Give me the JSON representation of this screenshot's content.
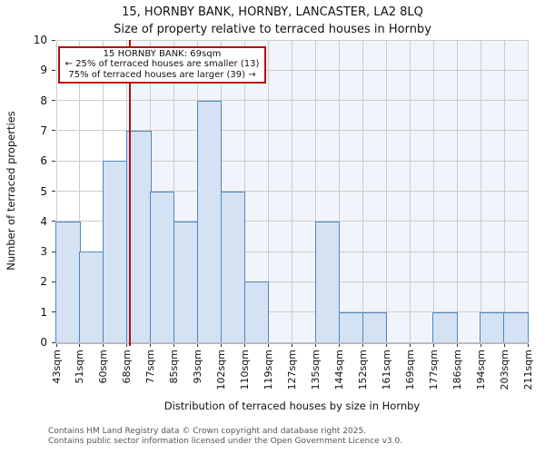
{
  "header": {
    "title": "15, HORNBY BANK, HORNBY, LANCASTER, LA2 8LQ",
    "subtitle": "Size of property relative to terraced houses in Hornby"
  },
  "annotation": {
    "lines": [
      "15 HORNBY BANK: 69sqm",
      "← 25% of terraced houses are smaller (13)",
      "75% of terraced houses are larger (39) →"
    ]
  },
  "chart_data": {
    "type": "bar",
    "title": "15, HORNBY BANK, HORNBY, LANCASTER, LA2 8LQ",
    "subtitle": "Size of property relative to terraced houses in Hornby",
    "xlabel": "Distribution of terraced houses by size in Hornby",
    "ylabel": "Number of terraced properties",
    "x_tick_labels": [
      "43sqm",
      "51sqm",
      "60sqm",
      "68sqm",
      "77sqm",
      "85sqm",
      "93sqm",
      "102sqm",
      "110sqm",
      "119sqm",
      "127sqm",
      "135sqm",
      "144sqm",
      "152sqm",
      "161sqm",
      "169sqm",
      "177sqm",
      "186sqm",
      "194sqm",
      "203sqm",
      "211sqm"
    ],
    "x_tick_values": [
      43,
      51,
      60,
      68,
      77,
      85,
      93,
      102,
      110,
      119,
      127,
      135,
      144,
      152,
      161,
      169,
      177,
      186,
      194,
      203,
      211
    ],
    "bin_counts": [
      4,
      3,
      6,
      7,
      5,
      4,
      8,
      5,
      2,
      0,
      0,
      4,
      1,
      1,
      0,
      0,
      1,
      0,
      1,
      1
    ],
    "marker": {
      "value_sqm": 69,
      "smaller_count": 13,
      "smaller_pct": 25,
      "larger_count": 39,
      "larger_pct": 75
    },
    "ylim": [
      0,
      10
    ],
    "y_ticks": [
      0,
      1,
      2,
      3,
      4,
      5,
      6,
      7,
      8,
      9,
      10
    ],
    "grid": true,
    "legend": false,
    "colors": {
      "bar_fill": "#d5e2f3",
      "bar_edge": "#4f86c4",
      "marker_line": "#b50d0d",
      "shade_right_of_marker": "#f1f4fb",
      "gridline": "#cccccc",
      "baseline": "#b8bcc2",
      "tick_mark": "#333333",
      "annotation_border": "#b50d0d",
      "footer_text": "#555555"
    }
  },
  "footer": {
    "lines": [
      "Contains HM Land Registry data © Crown copyright and database right 2025.",
      "Contains public sector information licensed under the Open Government Licence v3.0."
    ]
  }
}
